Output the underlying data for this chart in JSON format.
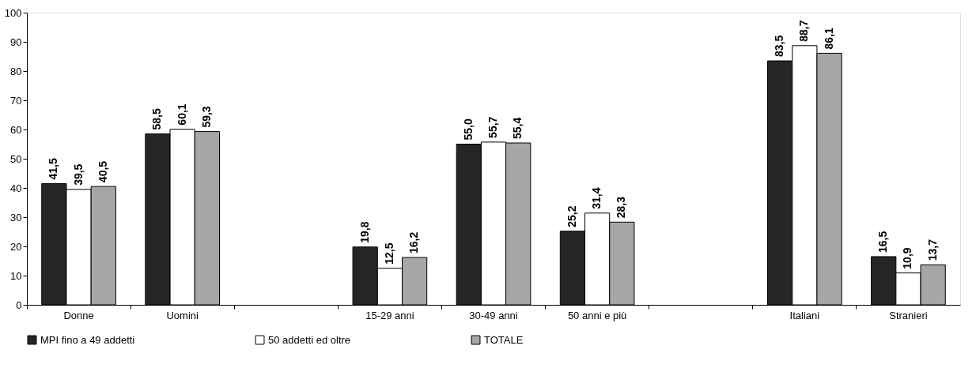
{
  "chart_data": {
    "type": "bar",
    "categories": [
      "Donne",
      "Uomini",
      null,
      "15-29 anni",
      "30-49 anni",
      "50 anni e più",
      null,
      "Italiani",
      "Stranieri"
    ],
    "series": [
      {
        "name": "MPI fino a 49 addetti",
        "color": "#262626",
        "values": [
          41.5,
          58.5,
          null,
          19.8,
          55.0,
          25.2,
          null,
          83.5,
          16.5
        ],
        "value_labels": [
          "41,5",
          "58,5",
          null,
          "19,8",
          "55,0",
          "25,2",
          null,
          "83,5",
          "16,5"
        ]
      },
      {
        "name": "50 addetti ed oltre",
        "color": "#ffffff",
        "values": [
          39.5,
          60.1,
          null,
          12.5,
          55.7,
          31.4,
          null,
          88.7,
          10.9
        ],
        "value_labels": [
          "39,5",
          "60,1",
          null,
          "12,5",
          "55,7",
          "31,4",
          null,
          "88,7",
          "10,9"
        ]
      },
      {
        "name": "TOTALE",
        "color": "#a6a6a6",
        "values": [
          40.5,
          59.3,
          null,
          16.2,
          55.4,
          28.3,
          null,
          86.1,
          13.7
        ],
        "value_labels": [
          "40,5",
          "59,3",
          null,
          "16,2",
          "55,4",
          "28,3",
          null,
          "86,1",
          "13,7"
        ]
      }
    ],
    "ylim": [
      0,
      100
    ],
    "yticks": [
      0,
      10,
      20,
      30,
      40,
      50,
      60,
      70,
      80,
      90,
      100
    ],
    "grid": false,
    "legend": "bottom"
  }
}
